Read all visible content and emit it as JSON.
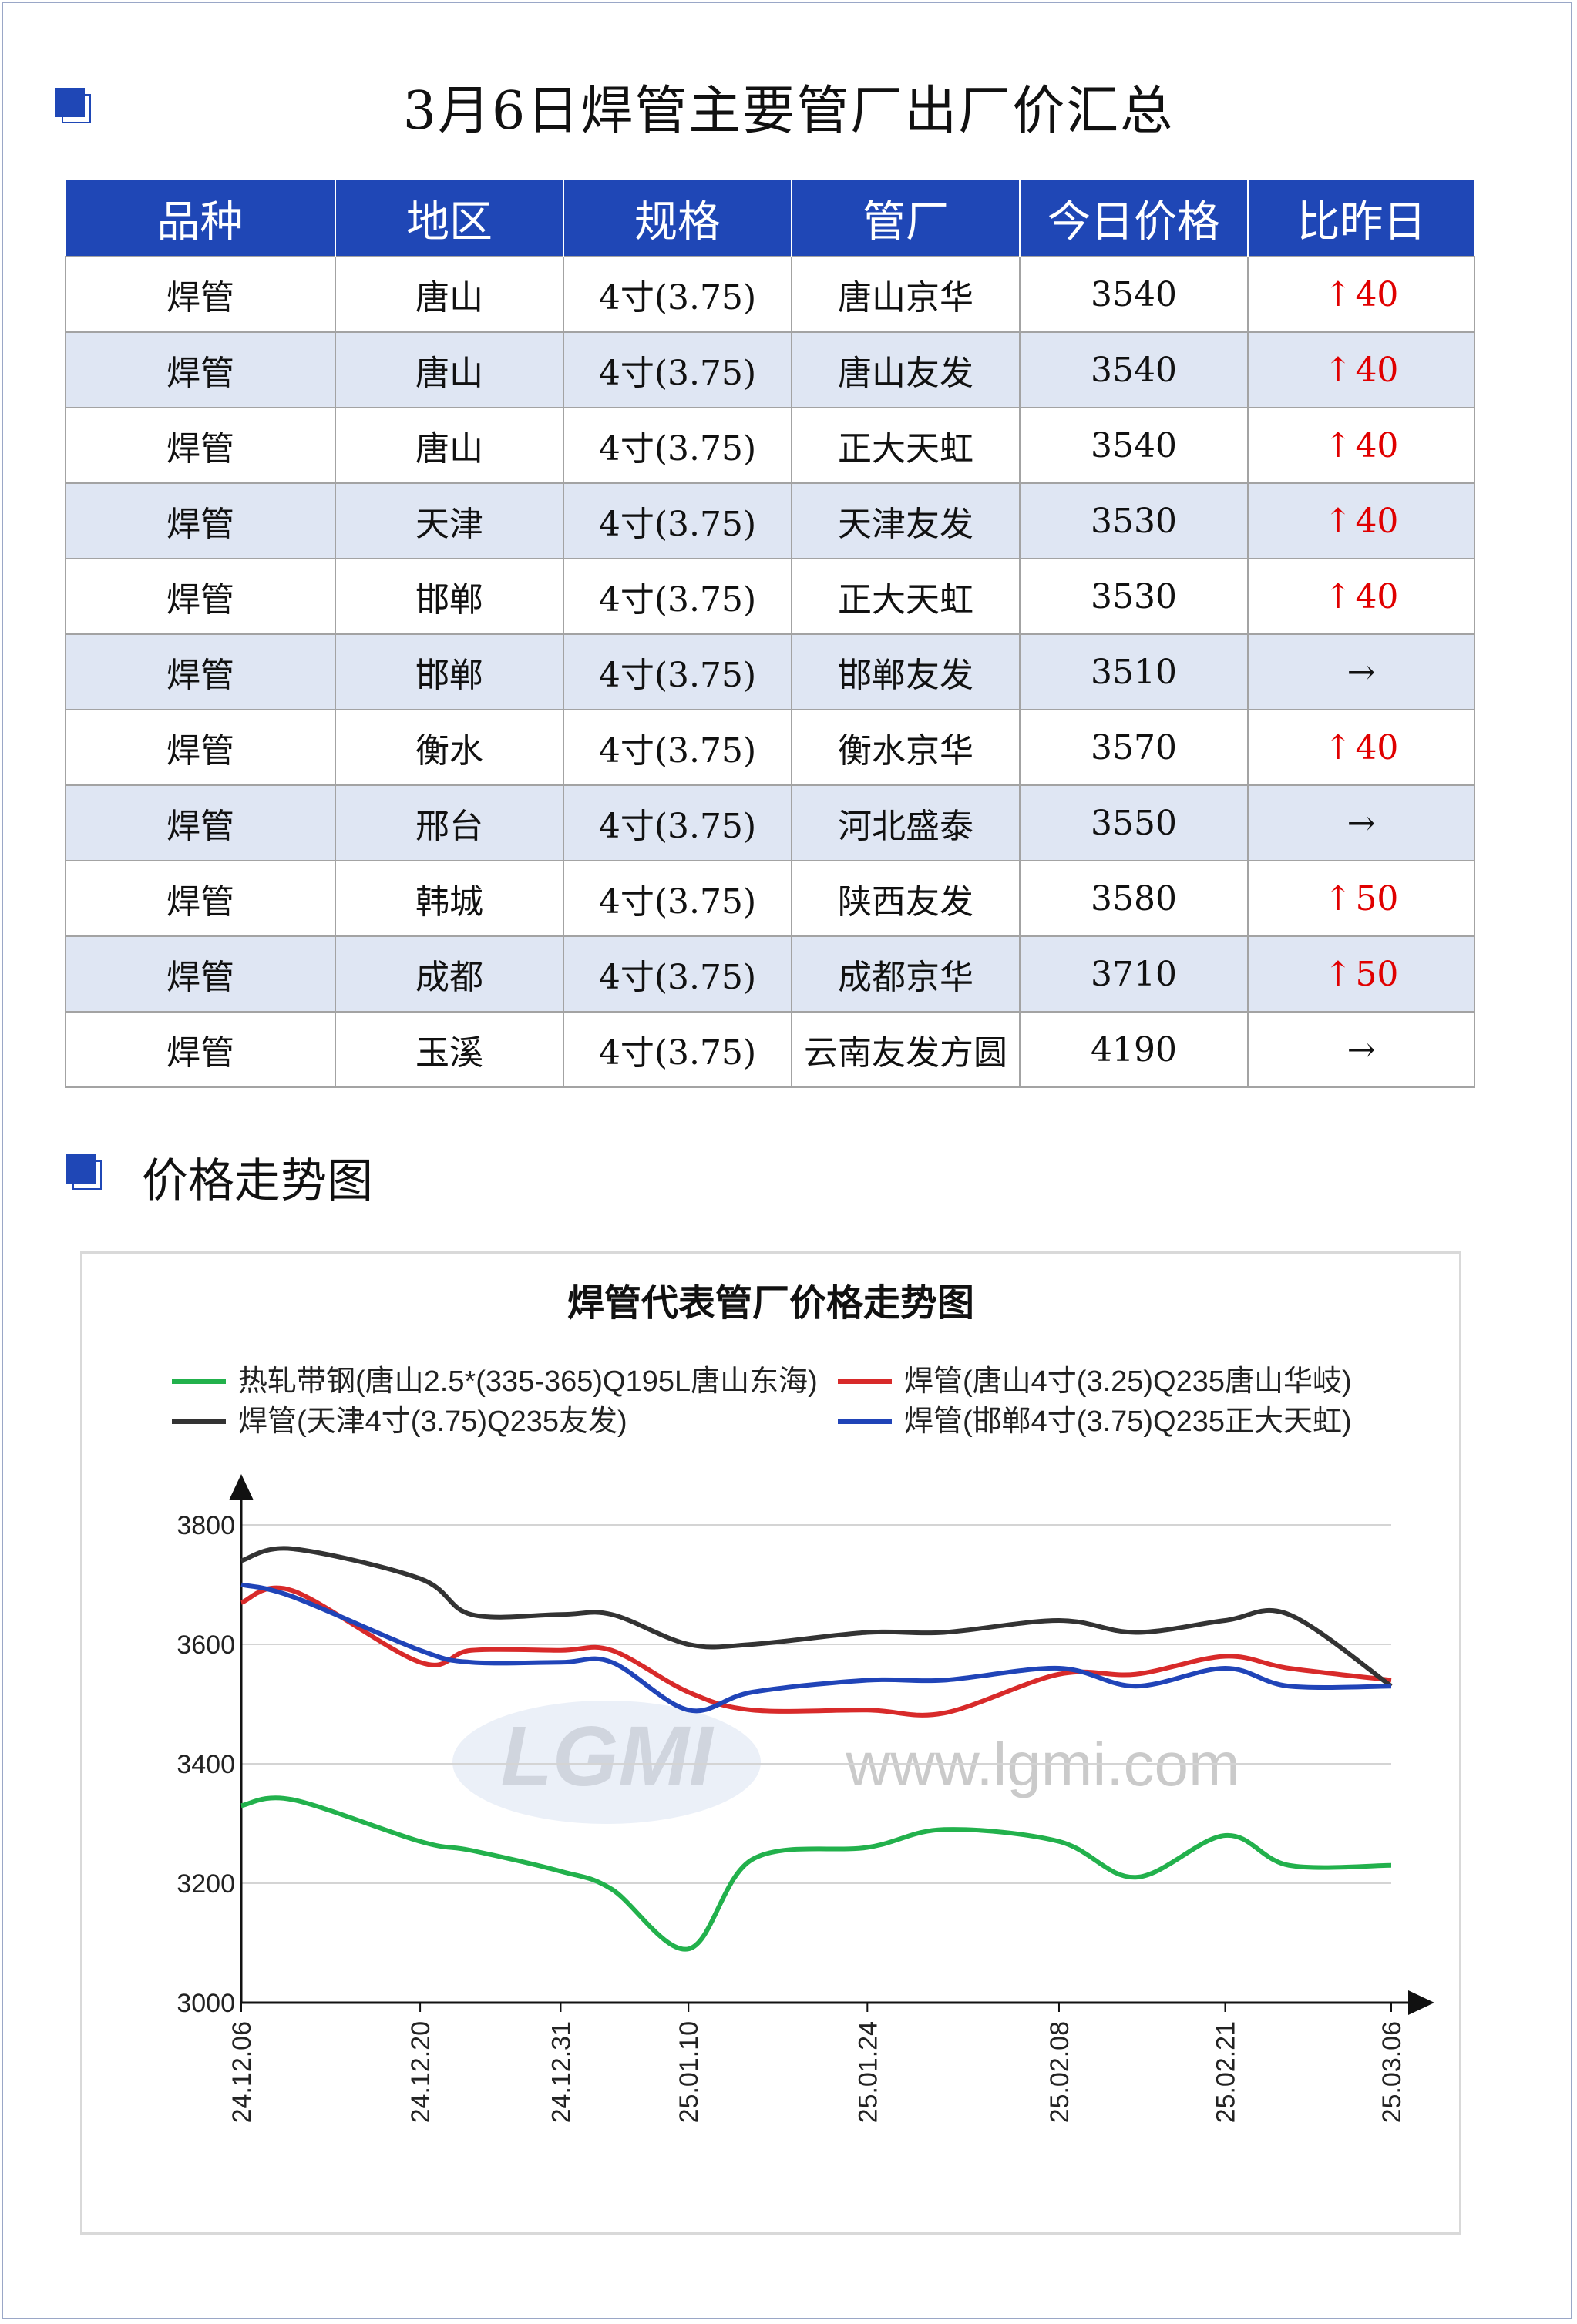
{
  "header": {
    "title": "3月6日焊管主要管厂出厂价汇总",
    "section2_title": "价格走势图"
  },
  "table": {
    "columns": [
      "品种",
      "地区",
      "规格",
      "管厂",
      "今日价格",
      "比昨日"
    ],
    "rows": [
      {
        "variety": "焊管",
        "region": "唐山",
        "spec": "4寸(3.75)",
        "mill": "唐山京华",
        "price": "3540",
        "change": "40",
        "dir": "up"
      },
      {
        "variety": "焊管",
        "region": "唐山",
        "spec": "4寸(3.75)",
        "mill": "唐山友发",
        "price": "3540",
        "change": "40",
        "dir": "up"
      },
      {
        "variety": "焊管",
        "region": "唐山",
        "spec": "4寸(3.75)",
        "mill": "正大天虹",
        "price": "3540",
        "change": "40",
        "dir": "up"
      },
      {
        "variety": "焊管",
        "region": "天津",
        "spec": "4寸(3.75)",
        "mill": "天津友发",
        "price": "3530",
        "change": "40",
        "dir": "up"
      },
      {
        "variety": "焊管",
        "region": "邯郸",
        "spec": "4寸(3.75)",
        "mill": "正大天虹",
        "price": "3530",
        "change": "40",
        "dir": "up"
      },
      {
        "variety": "焊管",
        "region": "邯郸",
        "spec": "4寸(3.75)",
        "mill": "邯郸友发",
        "price": "3510",
        "change": "",
        "dir": "flat"
      },
      {
        "variety": "焊管",
        "region": "衡水",
        "spec": "4寸(3.75)",
        "mill": "衡水京华",
        "price": "3570",
        "change": "40",
        "dir": "up"
      },
      {
        "variety": "焊管",
        "region": "邢台",
        "spec": "4寸(3.75)",
        "mill": "河北盛泰",
        "price": "3550",
        "change": "",
        "dir": "flat"
      },
      {
        "variety": "焊管",
        "region": "韩城",
        "spec": "4寸(3.75)",
        "mill": "陕西友发",
        "price": "3580",
        "change": "50",
        "dir": "up"
      },
      {
        "variety": "焊管",
        "region": "成都",
        "spec": "4寸(3.75)",
        "mill": "成都京华",
        "price": "3710",
        "change": "50",
        "dir": "up"
      },
      {
        "variety": "焊管",
        "region": "玉溪",
        "spec": "4寸(3.75)",
        "mill": "云南友发方圆",
        "price": "4190",
        "change": "",
        "dir": "flat"
      }
    ]
  },
  "watermark": {
    "logo": "LGMI",
    "url": "www.lgmi.com"
  },
  "chart_data": {
    "type": "line",
    "title": "焊管代表管厂价格走势图",
    "xlabel": "",
    "ylabel": "",
    "ylim": [
      3000,
      3800
    ],
    "yticks": [
      3000,
      3200,
      3400,
      3600,
      3800
    ],
    "xticks": [
      "24.12.06",
      "24.12.20",
      "24.12.31",
      "25.01.10",
      "25.01.24",
      "25.02.08",
      "25.02.21",
      "25.03.06"
    ],
    "legend_position": "top",
    "grid": true,
    "series": [
      {
        "name": "热轧带钢(唐山2.5*(335-365)Q195L唐山东海)",
        "color": "#22b14c",
        "points": [
          [
            "24.12.06",
            3330
          ],
          [
            "24.12.10",
            3340
          ],
          [
            "24.12.20",
            3270
          ],
          [
            "24.12.24",
            3255
          ],
          [
            "24.12.31",
            3220
          ],
          [
            "25.01.04",
            3190
          ],
          [
            "25.01.10",
            3090
          ],
          [
            "25.01.15",
            3240
          ],
          [
            "25.01.24",
            3260
          ],
          [
            "25.01.30",
            3290
          ],
          [
            "25.02.08",
            3270
          ],
          [
            "25.02.14",
            3210
          ],
          [
            "25.02.21",
            3280
          ],
          [
            "25.02.26",
            3230
          ],
          [
            "25.03.06",
            3230
          ]
        ]
      },
      {
        "name": "焊管(唐山4寸(3.25)Q235唐山华岐)",
        "color": "#d82a2a",
        "points": [
          [
            "24.12.06",
            3670
          ],
          [
            "24.12.10",
            3690
          ],
          [
            "24.12.20",
            3570
          ],
          [
            "24.12.24",
            3590
          ],
          [
            "24.12.31",
            3590
          ],
          [
            "25.01.04",
            3590
          ],
          [
            "25.01.10",
            3520
          ],
          [
            "25.01.15",
            3490
          ],
          [
            "25.01.24",
            3490
          ],
          [
            "25.01.30",
            3485
          ],
          [
            "25.02.08",
            3550
          ],
          [
            "25.02.14",
            3550
          ],
          [
            "25.02.21",
            3580
          ],
          [
            "25.02.26",
            3560
          ],
          [
            "25.03.06",
            3540
          ]
        ]
      },
      {
        "name": "焊管(天津4寸(3.75)Q235友发)",
        "color": "#333333",
        "points": [
          [
            "24.12.06",
            3740
          ],
          [
            "24.12.10",
            3760
          ],
          [
            "24.12.20",
            3710
          ],
          [
            "24.12.24",
            3650
          ],
          [
            "24.12.31",
            3650
          ],
          [
            "25.01.04",
            3650
          ],
          [
            "25.01.10",
            3600
          ],
          [
            "25.01.15",
            3600
          ],
          [
            "25.01.24",
            3620
          ],
          [
            "25.01.30",
            3620
          ],
          [
            "25.02.08",
            3640
          ],
          [
            "25.02.14",
            3620
          ],
          [
            "25.02.21",
            3640
          ],
          [
            "25.02.26",
            3650
          ],
          [
            "25.03.06",
            3530
          ]
        ]
      },
      {
        "name": "焊管(邯郸4寸(3.75)Q235正大天虹)",
        "color": "#2044b8",
        "points": [
          [
            "24.12.06",
            3700
          ],
          [
            "24.12.10",
            3680
          ],
          [
            "24.12.20",
            3590
          ],
          [
            "24.12.24",
            3570
          ],
          [
            "24.12.31",
            3570
          ],
          [
            "25.01.04",
            3570
          ],
          [
            "25.01.10",
            3490
          ],
          [
            "25.01.15",
            3520
          ],
          [
            "25.01.24",
            3540
          ],
          [
            "25.01.30",
            3540
          ],
          [
            "25.02.08",
            3560
          ],
          [
            "25.02.14",
            3530
          ],
          [
            "25.02.21",
            3560
          ],
          [
            "25.02.26",
            3530
          ],
          [
            "25.03.06",
            3530
          ]
        ]
      }
    ]
  }
}
